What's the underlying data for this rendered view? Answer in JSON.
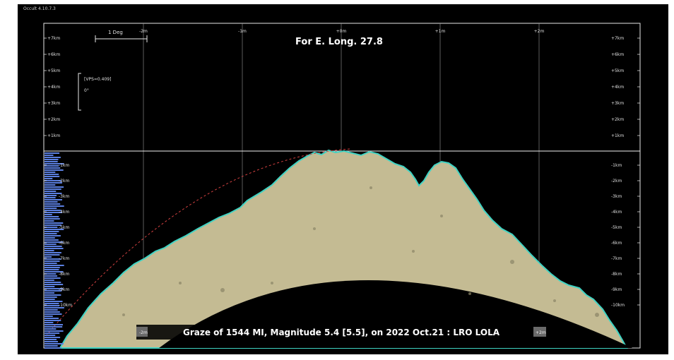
{
  "window": {
    "title": "Occult 4.10.7.3"
  },
  "plot": {
    "heading": "For E. Long. 27.8",
    "scale_bar_label": "1 Deg",
    "legend_line1": "[VPS=0.409]",
    "legend_line2": "0°",
    "top_axis_labels": [
      "-2m",
      "-1m",
      "+0m",
      "+1m",
      "+2m"
    ],
    "upper_left_labels": [
      "+7km",
      "+6km",
      "+5km",
      "+4km",
      "+3km",
      "+2km",
      "+1km"
    ],
    "upper_right_labels": [
      "+7km",
      "+6km",
      "+5km",
      "+4km",
      "+3km",
      "+2km",
      "+1km"
    ],
    "lower_right_labels": [
      "-1km",
      "-2km",
      "-3km",
      "-4km",
      "-5km",
      "-6km",
      "-7km",
      "-8km",
      "-9km",
      "-10km"
    ],
    "lower_left_labels": [
      "-1km",
      "-2km",
      "-3km",
      "-4km",
      "-5km",
      "-6km",
      "-7km",
      "-8km",
      "-9km",
      "-10km"
    ],
    "bottom_left_tag": "-2m",
    "bottom_right_tag": "+2m",
    "caption": "Graze of  1544 MI,  Magnitude 5.4 [5.5],  on 2022 Oct.21  :  LRO LOLA",
    "colors": {
      "background": "#000000",
      "lunar_surface": "#c4bb93",
      "limb_edge": "#3fd3c3",
      "grid": "#e8e8e8",
      "bars": "#5b7fe0",
      "graze_path": "#d04040"
    }
  }
}
